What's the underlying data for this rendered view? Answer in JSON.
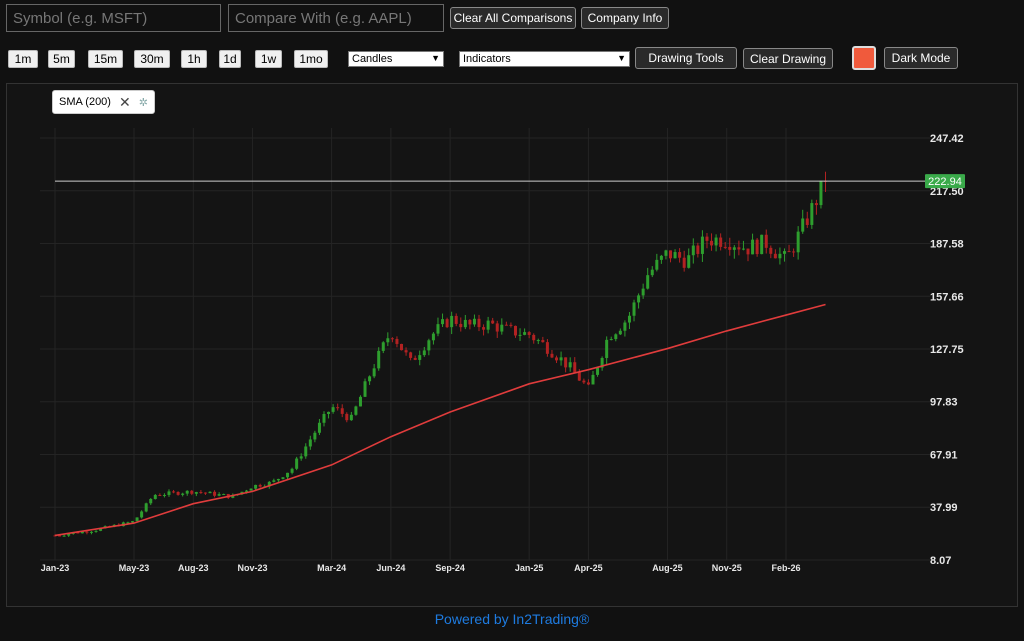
{
  "toolbar": {
    "symbol_placeholder": "Symbol (e.g. MSFT)",
    "compare_placeholder": "Compare With (e.g. AAPL)",
    "clear_comparisons_label": "Clear All Comparisons",
    "company_info_label": "Company Info",
    "timeframes": [
      "1m",
      "5m",
      "15m",
      "30m",
      "1h",
      "1d",
      "1w",
      "1mo"
    ],
    "chart_type_selected": "Candles",
    "indicators_selected": "Indicators",
    "drawing_tools_label": "Drawing Tools",
    "clear_drawing_label": "Clear Drawing",
    "color_swatch": "#f05a3c",
    "dark_mode_label": "Dark Mode"
  },
  "indicator_chip": {
    "label": "SMA (200)",
    "close_icon": "close-icon",
    "settings_icon": "gear-icon"
  },
  "chart_data": {
    "type": "candlestick",
    "y_ticks": [
      "247.42",
      "217.50",
      "187.58",
      "157.66",
      "127.75",
      "97.83",
      "67.91",
      "37.99",
      "8.07"
    ],
    "ylim": [
      8.07,
      247.42
    ],
    "x_ticks": [
      "Jan-23",
      "May-23",
      "Aug-23",
      "Nov-23",
      "Mar-24",
      "Jun-24",
      "Sep-24",
      "Jan-25",
      "Apr-25",
      "Aug-25",
      "Nov-25",
      "Feb-26"
    ],
    "last_price": 222.94,
    "last_price_label": "222.94",
    "up_color": "#2e9e2e",
    "down_color": "#b22222",
    "price_line_color": "#cccccc",
    "price_badge_color": "#3aaa4a",
    "sma_color": "#e03c3c",
    "sma_points": [
      [
        "Jan-23",
        22
      ],
      [
        "May-23",
        29
      ],
      [
        "Aug-23",
        40
      ],
      [
        "Nov-23",
        47
      ],
      [
        "Mar-24",
        62
      ],
      [
        "Jun-24",
        78
      ],
      [
        "Sep-24",
        92
      ],
      [
        "Jan-25",
        108
      ],
      [
        "Apr-25",
        116
      ],
      [
        "Aug-25",
        128
      ],
      [
        "Nov-25",
        138
      ],
      [
        "Feb-26",
        147
      ],
      [
        "Apr-26",
        153
      ]
    ],
    "price_path": [
      [
        "Jan-23",
        22
      ],
      [
        "Mar-23",
        25
      ],
      [
        "May-23",
        30
      ],
      [
        "Jun-23",
        45
      ],
      [
        "Aug-23",
        47
      ],
      [
        "Oct-23",
        44
      ],
      [
        "Nov-23",
        50
      ],
      [
        "Dec-23",
        52
      ],
      [
        "Jan-24",
        60
      ],
      [
        "Feb-24",
        78
      ],
      [
        "Mar-24",
        95
      ],
      [
        "Apr-24",
        88
      ],
      [
        "May-24",
        115
      ],
      [
        "Jun-24",
        138
      ],
      [
        "Jul-24",
        120
      ],
      [
        "Aug-24",
        135
      ],
      [
        "Sep-24",
        145
      ],
      [
        "Oct-24",
        141
      ],
      [
        "Nov-24",
        142
      ],
      [
        "Dec-24",
        138
      ],
      [
        "Jan-25",
        136
      ],
      [
        "Feb-25",
        128
      ],
      [
        "Mar-25",
        118
      ],
      [
        "Apr-25",
        105
      ],
      [
        "May-25",
        135
      ],
      [
        "Jun-25",
        145
      ],
      [
        "Jul-25",
        170
      ],
      [
        "Aug-25",
        182
      ],
      [
        "Sep-25",
        178
      ],
      [
        "Oct-25",
        190
      ],
      [
        "Nov-25",
        190
      ],
      [
        "Dec-25",
        185
      ],
      [
        "Jan-26",
        188
      ],
      [
        "Feb-26",
        178
      ],
      [
        "Mar-26",
        200
      ],
      [
        "Apr-26",
        222.94
      ]
    ]
  },
  "footer_text": "Powered by In2Trading®"
}
